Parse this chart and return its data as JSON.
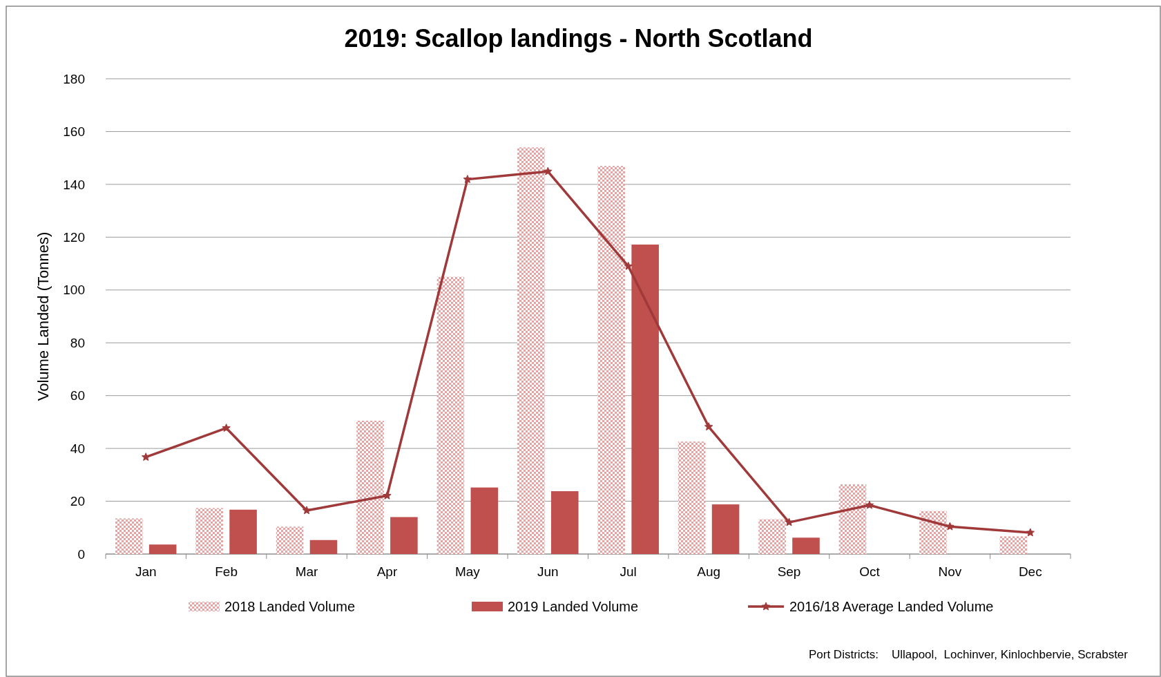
{
  "chart_data": {
    "type": "bar",
    "title": "2019: Scallop landings - North Scotland",
    "ylabel": "Volume Landed (Tonnes)",
    "categories": [
      "Jan",
      "Feb",
      "Mar",
      "Apr",
      "May",
      "Jun",
      "Jul",
      "Aug",
      "Sep",
      "Oct",
      "Nov",
      "Dec"
    ],
    "series": [
      {
        "name": "2018  Landed Volume",
        "color": "#e6a3a1",
        "values": [
          13.5,
          17.4,
          10.4,
          50.5,
          105,
          154,
          147,
          42.6,
          13.2,
          26.4,
          16.3,
          6.7
        ]
      },
      {
        "name": "2019 Landed Volume",
        "color": "#c0504d",
        "values": [
          3.6,
          16.8,
          5.3,
          14,
          25.2,
          23.8,
          117.2,
          18.8,
          6.2,
          null,
          null,
          null
        ]
      },
      {
        "name": "2016/18 Average Landed Volume",
        "type": "line",
        "color": "#a0393a",
        "marker": "star",
        "values": [
          36.7,
          47.7,
          16.5,
          22.1,
          141.9,
          144.9,
          109,
          48.2,
          12,
          18.5,
          10.4,
          8.1
        ]
      }
    ],
    "ylim": [
      0,
      180
    ],
    "yticks": [
      0,
      20,
      40,
      60,
      80,
      100,
      120,
      140,
      160,
      180
    ],
    "grid": "y",
    "legend": "bottom",
    "annotations": [
      "Port Districts:    Ullapool,  Lochinver, Kinlochbervie, Scrabster"
    ]
  }
}
